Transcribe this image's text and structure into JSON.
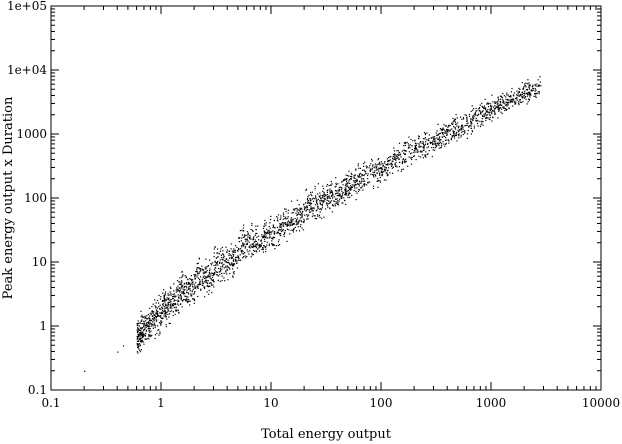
{
  "chart_data": {
    "type": "scatter",
    "title": "",
    "xlabel": "Total energy output",
    "ylabel": "Peak energy output  x  Duration",
    "x_scale": "log",
    "y_scale": "log",
    "xlim": [
      0.1,
      10000
    ],
    "ylim": [
      0.1,
      100000
    ],
    "x_tick_labels": [
      "0.1",
      "1",
      "10",
      "100",
      "1000",
      "10000"
    ],
    "y_tick_labels": [
      "0.1",
      "1",
      "10",
      "100",
      "1000",
      "1e+04",
      "1e+05"
    ],
    "grid": false,
    "legend": "none",
    "marker_color": "#000000",
    "series": [
      {
        "values_description": "dense cloud of small points",
        "x": [
          0.2,
          0.4,
          0.45,
          0.6,
          0.65,
          0.7,
          0.8,
          0.9,
          1.0,
          1.0,
          1.2,
          1.5,
          1.5,
          2.0,
          2.0,
          2.5,
          3.0,
          3.0,
          4.0,
          5.0,
          5.0,
          6.0,
          8.0,
          10,
          10,
          12,
          15,
          20,
          20,
          25,
          30,
          40,
          50,
          60,
          80,
          100,
          100,
          120,
          150,
          200,
          250,
          300,
          400,
          500,
          600,
          800,
          1000,
          1200,
          1500,
          2000,
          2500,
          2800
        ],
        "y": [
          0.2,
          0.4,
          0.5,
          0.7,
          0.8,
          0.9,
          1.1,
          1.4,
          1.6,
          2.0,
          2.2,
          3.0,
          4.0,
          3.5,
          6.0,
          6.0,
          5.0,
          9.0,
          10,
          12,
          16,
          20,
          22,
          30,
          24,
          36,
          45,
          55,
          70,
          80,
          100,
          120,
          150,
          190,
          240,
          300,
          260,
          350,
          450,
          600,
          700,
          800,
          1100,
          1300,
          1500,
          2100,
          2500,
          3000,
          3500,
          4300,
          5200,
          5800
        ]
      }
    ]
  }
}
